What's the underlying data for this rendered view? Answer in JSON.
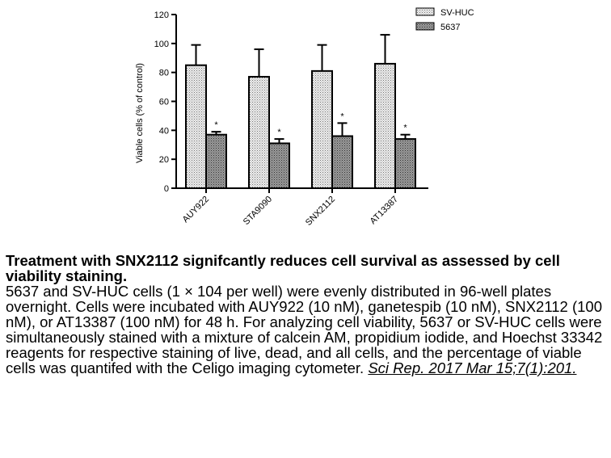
{
  "chart_data": {
    "type": "bar",
    "title": "",
    "xlabel": "",
    "ylabel": "Viable cells (% of control)",
    "ylim": [
      0,
      120
    ],
    "yticks": [
      0,
      20,
      40,
      60,
      80,
      100,
      120
    ],
    "categories": [
      "AUY922",
      "STA9090",
      "SNX2112",
      "AT13387"
    ],
    "series": [
      {
        "name": "SV-HUC",
        "pattern": "dotted-light",
        "values": [
          85,
          77,
          81,
          86
        ],
        "errors": [
          14,
          19,
          18,
          20
        ],
        "stars": [
          "",
          "",
          "",
          ""
        ]
      },
      {
        "name": "5637",
        "pattern": "dotted-dark",
        "values": [
          37,
          31,
          36,
          34
        ],
        "errors": [
          2,
          3,
          9,
          3
        ],
        "stars": [
          "*",
          "*",
          "*",
          "*"
        ]
      }
    ],
    "legend_position": "top-right",
    "colors": {
      "light": "#e8e8e8",
      "dark": "#8f8f8f",
      "ink": "#000000"
    }
  },
  "caption": {
    "title": "Treatment with SNX2112 signifcantly reduces cell survival as assessed by cell viability staining.",
    "body": "5637 and SV-HUC cells (1 × 104 per well) were evenly distributed in 96-well plates overnight. Cells were incubated with AUY922 (10 nM), ganetespib (10 nM), SNX2112 (100 nM), or AT13387 (100 nM) for 48 h. For analyzing cell viability, 5637 or SV-HUC cells were simultaneously stained with a mixture of calcein AM, propidium iodide, and Hoechst 33342 reagents for respective staining of live, dead, and all cells, and the percentage of viable cells was quantifed with the Celigo imaging cytometer. ",
    "citation": "Sci Rep. 2017 Mar 15;7(1):201."
  }
}
